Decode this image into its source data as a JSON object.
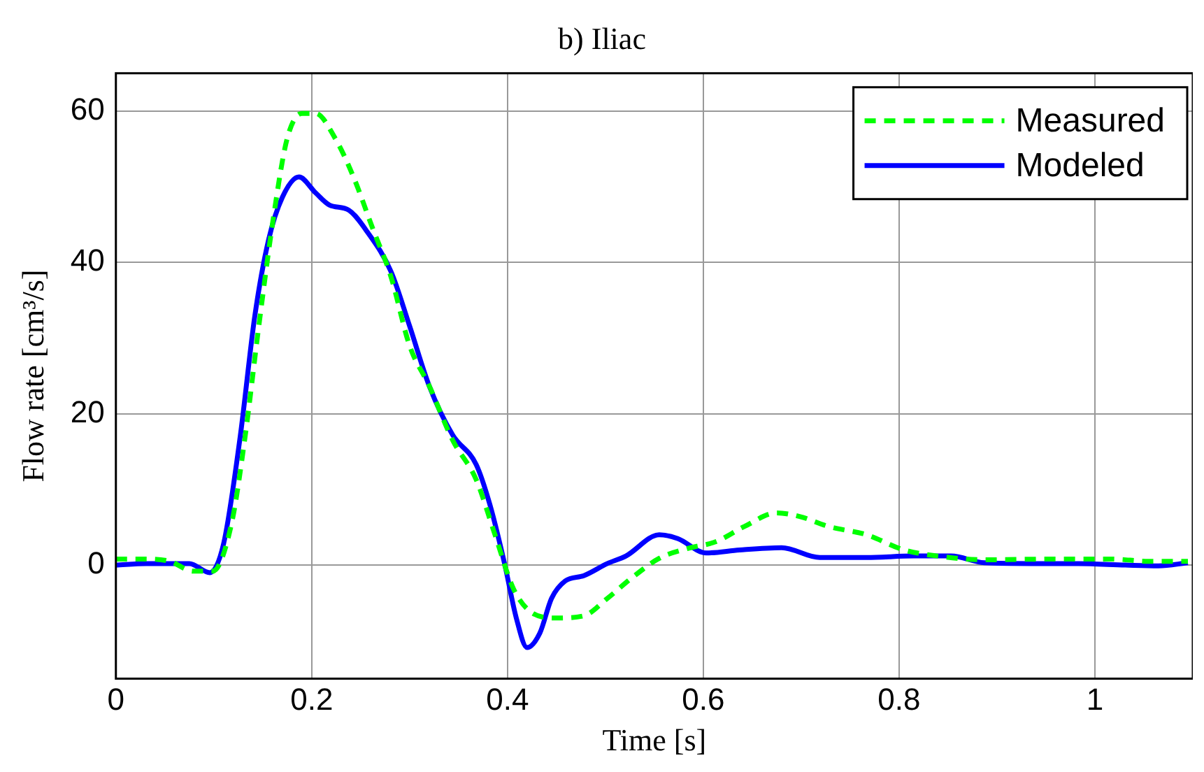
{
  "chart_data": {
    "type": "line",
    "title": "b) Iliac",
    "xlabel": "Time [s]",
    "ylabel": "Flow rate [cm³/s]",
    "xlim": [
      0,
      1.1
    ],
    "xticks": [
      0,
      0.2,
      0.4,
      0.6,
      0.8,
      1
    ],
    "ylim": [
      -15,
      65
    ],
    "yticks": [
      0,
      20,
      40,
      60
    ],
    "grid": true,
    "legend": "top right",
    "marker": "none",
    "series": [
      {
        "name": "Measured",
        "color": "#00ff00",
        "line_style": "dashed",
        "x": [
          0,
          0.031,
          0.055,
          0.079,
          0.099,
          0.118,
          0.132,
          0.146,
          0.161,
          0.175,
          0.19,
          0.204,
          0.224,
          0.243,
          0.262,
          0.281,
          0.3,
          0.32,
          0.344,
          0.368,
          0.387,
          0.406,
          0.425,
          0.449,
          0.478,
          0.502,
          0.526,
          0.555,
          0.584,
          0.613,
          0.642,
          0.675,
          0.699,
          0.728,
          0.767,
          0.805,
          0.839,
          0.887,
          0.959,
          1.017,
          1.055,
          1.095
        ],
        "values": [
          0.8,
          0.8,
          0.5,
          -0.8,
          -0.8,
          5.4,
          17,
          31.6,
          46,
          56.4,
          59.7,
          59.7,
          56.4,
          51.2,
          44.6,
          38.1,
          29,
          23.7,
          16.5,
          11.3,
          4.1,
          -3.1,
          -6.3,
          -7,
          -6.7,
          -4.4,
          -1.8,
          0.9,
          2.2,
          3.1,
          5.1,
          6.9,
          6.4,
          5.1,
          4,
          2,
          1.2,
          0.7,
          0.8,
          0.8,
          0.5,
          0.5
        ]
      },
      {
        "name": "Modeled",
        "color": "#0000ff",
        "line_style": "solid",
        "x": [
          0,
          0.031,
          0.075,
          0.096,
          0.11,
          0.127,
          0.142,
          0.156,
          0.17,
          0.187,
          0.204,
          0.218,
          0.238,
          0.257,
          0.281,
          0.3,
          0.32,
          0.344,
          0.368,
          0.382,
          0.397,
          0.409,
          0.42,
          0.433,
          0.445,
          0.459,
          0.478,
          0.502,
          0.521,
          0.555,
          0.574,
          0.603,
          0.637,
          0.68,
          0.719,
          0.767,
          0.815,
          0.853,
          0.887,
          0.935,
          0.983,
          1.031,
          1.065,
          1.095
        ],
        "values": [
          0,
          0.2,
          0.2,
          -1,
          2.8,
          17,
          33,
          43,
          48.6,
          51.3,
          49.2,
          47.6,
          46.9,
          44,
          38.8,
          31.6,
          23.7,
          17.2,
          13.3,
          8,
          0.2,
          -7,
          -10.9,
          -9,
          -4.4,
          -2.1,
          -1.4,
          0.2,
          1.2,
          4,
          3.5,
          1.6,
          2,
          2.3,
          1,
          1,
          1.2,
          1.2,
          0.3,
          0.2,
          0.2,
          0,
          -0.1,
          0.3
        ]
      }
    ]
  }
}
